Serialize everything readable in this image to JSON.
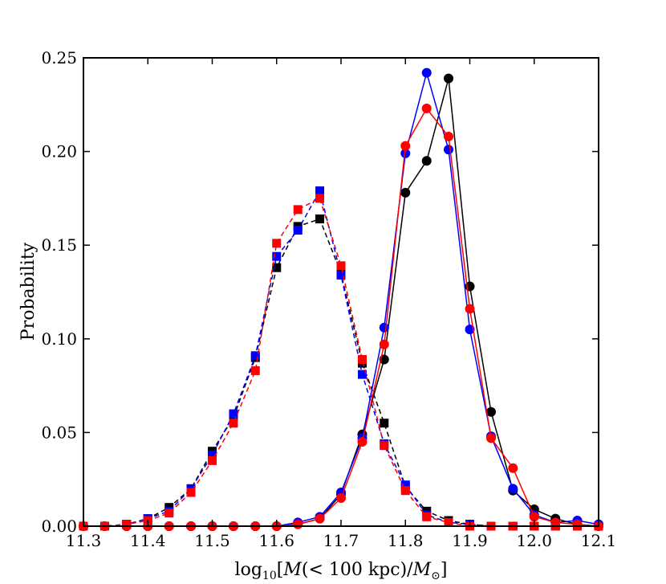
{
  "chart_data": {
    "type": "line",
    "title": "",
    "xlabel": {
      "prefix": "log",
      "sub": "10",
      "mid": "[",
      "italic": "M",
      "paren": "(< 100 kpc)/",
      "italic2": "M",
      "sun": "⊙",
      "end": "]"
    },
    "ylabel": "Probability",
    "xlim": [
      11.3,
      12.1
    ],
    "ylim": [
      0.0,
      0.25
    ],
    "xticks": [
      11.3,
      11.4,
      11.5,
      11.6,
      11.7,
      11.8,
      11.9,
      12.0,
      12.1
    ],
    "xtick_labels": [
      "11.3",
      "11.4",
      "11.5",
      "11.6",
      "11.7",
      "11.8",
      "11.9",
      "12.0",
      "12.1"
    ],
    "yticks": [
      0.0,
      0.05,
      0.1,
      0.15,
      0.2,
      0.25
    ],
    "ytick_labels": [
      "0.00",
      "0.05",
      "0.10",
      "0.15",
      "0.20",
      "0.25"
    ],
    "x": [
      11.3,
      11.333,
      11.367,
      11.4,
      11.433,
      11.467,
      11.5,
      11.533,
      11.567,
      11.6,
      11.633,
      11.667,
      11.7,
      11.733,
      11.767,
      11.8,
      11.833,
      11.867,
      11.9,
      11.933,
      11.967,
      12.0,
      12.033,
      12.067,
      12.1
    ],
    "series": [
      {
        "name": "black-squares",
        "color": "#000000",
        "marker": "square",
        "linestyle": "dashed",
        "values": [
          0.0,
          0.0,
          0.001,
          0.004,
          0.01,
          0.02,
          0.04,
          0.058,
          0.09,
          0.138,
          0.16,
          0.164,
          0.135,
          0.087,
          0.055,
          0.021,
          0.008,
          0.003,
          0.001,
          0.0,
          0.0,
          0.0,
          0.0,
          0.0,
          0.0
        ]
      },
      {
        "name": "blue-squares",
        "color": "#0000ff",
        "marker": "square",
        "linestyle": "dashed",
        "values": [
          0.0,
          0.0,
          0.001,
          0.004,
          0.008,
          0.02,
          0.038,
          0.06,
          0.091,
          0.144,
          0.158,
          0.179,
          0.134,
          0.081,
          0.044,
          0.022,
          0.006,
          0.002,
          0.001,
          0.0,
          0.0,
          0.0,
          0.0,
          0.0,
          0.0
        ]
      },
      {
        "name": "red-squares",
        "color": "#ff0000",
        "marker": "square",
        "linestyle": "dashed",
        "values": [
          0.0,
          0.0,
          0.001,
          0.003,
          0.007,
          0.018,
          0.035,
          0.055,
          0.083,
          0.151,
          0.169,
          0.175,
          0.139,
          0.089,
          0.043,
          0.019,
          0.005,
          0.002,
          0.0,
          0.0,
          0.0,
          0.0,
          0.0,
          0.0,
          0.0
        ]
      },
      {
        "name": "black-circles",
        "color": "#000000",
        "marker": "circle",
        "linestyle": "solid",
        "values": [
          0.0,
          0.0,
          0.0,
          0.0,
          0.0,
          0.0,
          0.0,
          0.0,
          0.0,
          0.0,
          0.001,
          0.004,
          0.017,
          0.049,
          0.089,
          0.178,
          0.195,
          0.239,
          0.128,
          0.061,
          0.019,
          0.009,
          0.004,
          0.001,
          0.0
        ]
      },
      {
        "name": "blue-circles",
        "color": "#0000ff",
        "marker": "circle",
        "linestyle": "solid",
        "values": [
          0.0,
          0.0,
          0.0,
          0.0,
          0.0,
          0.0,
          0.0,
          0.0,
          0.0,
          0.0,
          0.002,
          0.005,
          0.018,
          0.047,
          0.106,
          0.199,
          0.242,
          0.201,
          0.105,
          0.048,
          0.02,
          0.006,
          0.002,
          0.003,
          0.001
        ]
      },
      {
        "name": "red-circles",
        "color": "#ff0000",
        "marker": "circle",
        "linestyle": "solid",
        "values": [
          0.0,
          0.0,
          0.0,
          0.0,
          0.0,
          0.0,
          0.0,
          0.0,
          0.0,
          0.0,
          0.001,
          0.004,
          0.015,
          0.045,
          0.097,
          0.203,
          0.223,
          0.208,
          0.116,
          0.047,
          0.031,
          0.005,
          0.002,
          0.001,
          0.0
        ]
      }
    ],
    "grid": false,
    "legend": "none"
  }
}
